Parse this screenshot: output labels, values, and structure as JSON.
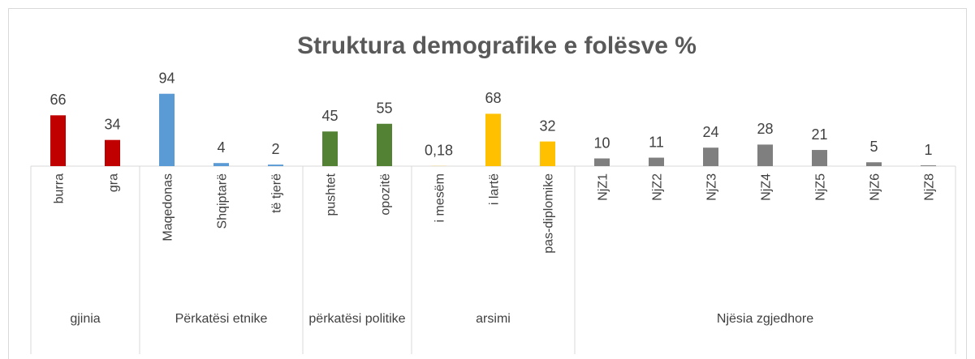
{
  "chart_data": {
    "type": "bar",
    "title": "Struktura demografike e folësve %",
    "groups": [
      {
        "name": "gjinia",
        "color": "#c00000",
        "categories": [
          "burra",
          "gra"
        ],
        "values": [
          66,
          34
        ]
      },
      {
        "name": "Përkatësi etnike",
        "color": "#5b9bd5",
        "categories": [
          "Maqedonas",
          "Shqiptarë",
          "të tjerë"
        ],
        "values": [
          94,
          4,
          2
        ]
      },
      {
        "name": "përkatësi politike",
        "color": "#548235",
        "categories": [
          "pushtet",
          "opozitë"
        ],
        "values": [
          45,
          55
        ]
      },
      {
        "name": "arsimi",
        "color": "#ffc000",
        "categories": [
          "i mesëm",
          "i lartë",
          "pas-diplomike"
        ],
        "values": [
          0.18,
          68,
          32
        ],
        "value_labels": [
          "0,18",
          "68",
          "32"
        ]
      },
      {
        "name": "Njësia zgjedhore",
        "color": "#7f7f7f",
        "categories": [
          "NjZ1",
          "NjZ2",
          "NjZ3",
          "NjZ4",
          "NjZ5",
          "NjZ6",
          "NjZ8"
        ],
        "values": [
          10,
          11,
          24,
          28,
          21,
          5,
          1
        ]
      }
    ]
  }
}
